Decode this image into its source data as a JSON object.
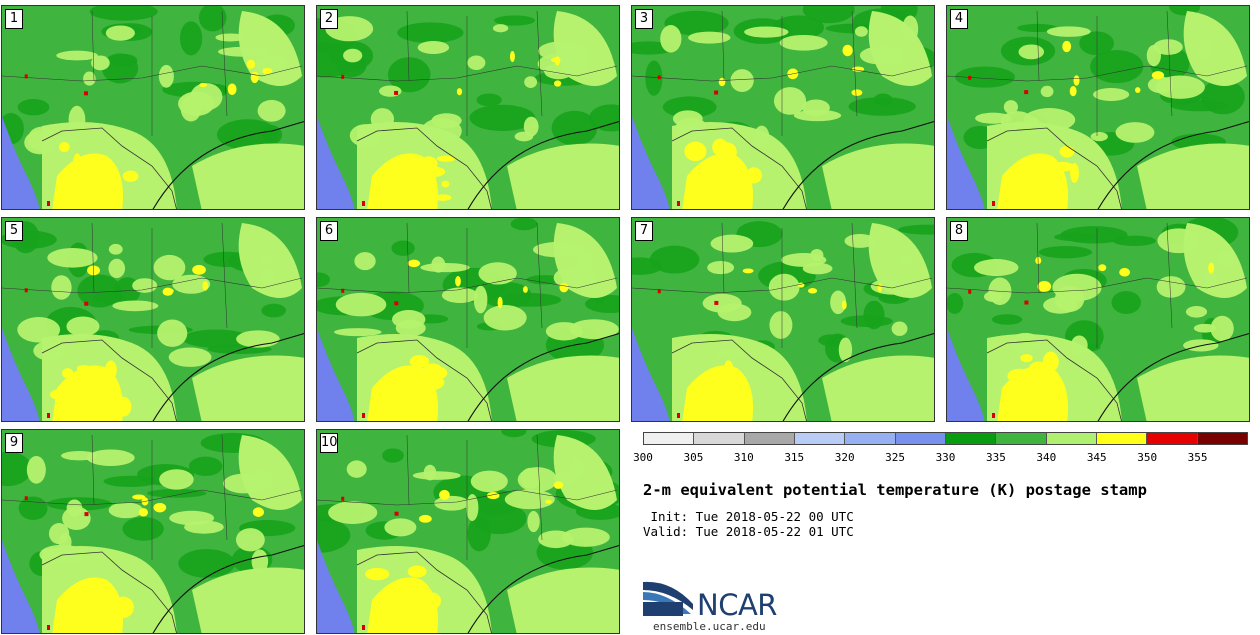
{
  "panels": [
    {
      "label": "1"
    },
    {
      "label": "2"
    },
    {
      "label": "3"
    },
    {
      "label": "4"
    },
    {
      "label": "5"
    },
    {
      "label": "6"
    },
    {
      "label": "7"
    },
    {
      "label": "8"
    },
    {
      "label": "9"
    },
    {
      "label": "10"
    }
  ],
  "colorbar": {
    "colors": [
      "#f0f0f0",
      "#d8d8d8",
      "#a8a8a8",
      "#b8ccf5",
      "#96b0f2",
      "#7890ee",
      "#0a9c10",
      "#3fb43f",
      "#b0f070",
      "#ffff18",
      "#e60000",
      "#7a0000"
    ],
    "tick_labels": [
      "300",
      "305",
      "310",
      "315",
      "320",
      "325",
      "330",
      "335",
      "340",
      "345",
      "350",
      "355"
    ]
  },
  "map_colors": {
    "water": "#7080ec",
    "dark": "#17a31c",
    "mid": "#3fb43f",
    "light": "#b6f26e",
    "yellow": "#ffff1e",
    "red": "#d80000"
  },
  "title": "2-m equivalent potential temperature (K) postage stamp",
  "init": " Init: Tue 2018-05-22 00 UTC",
  "valid": "Valid: Tue 2018-05-22 01 UTC",
  "logo": {
    "name": "NCAR",
    "url": "ensemble.ucar.edu"
  }
}
